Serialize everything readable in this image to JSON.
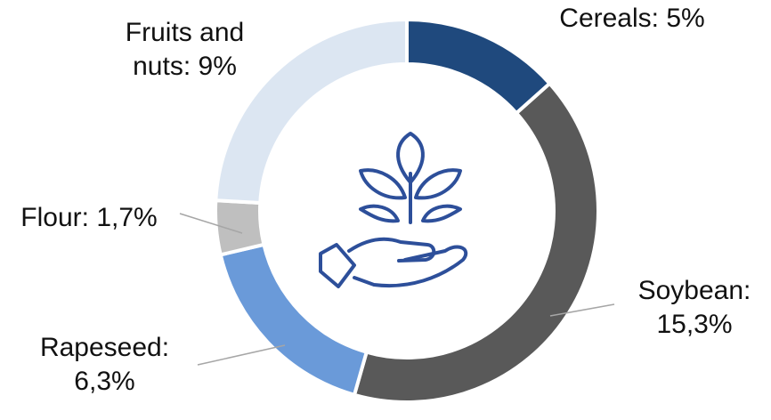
{
  "chart_data": {
    "type": "donut",
    "categories": [
      "Cereals:",
      "Soybean:",
      "Rapeseed:",
      "Flour:",
      "Fruits and nuts:"
    ],
    "values": [
      5,
      15.3,
      6.3,
      1.7,
      9
    ],
    "value_labels": [
      "5%",
      "15,3%",
      "6,3%",
      "1,7%",
      "9%"
    ],
    "colors": [
      "#1f497d",
      "#595959",
      "#6a9ad9",
      "#bfbfbf",
      "#dce6f2"
    ]
  }
}
